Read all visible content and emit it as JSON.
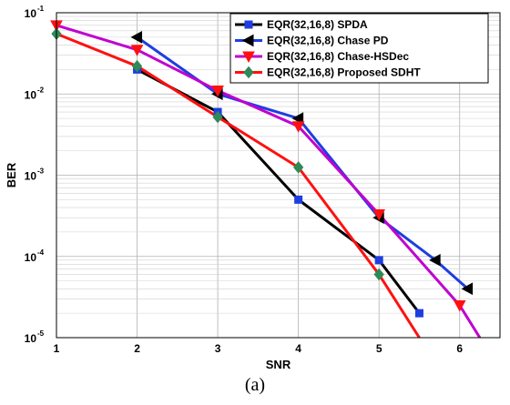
{
  "caption": "(a)",
  "chart_data": {
    "type": "line",
    "title": "",
    "xlabel": "SNR",
    "ylabel": "BER",
    "xlim": [
      1,
      6.5
    ],
    "ylim": [
      1e-05,
      0.1
    ],
    "yscale": "log",
    "x_ticks": [
      1,
      2,
      3,
      4,
      5,
      6
    ],
    "y_ticks": [
      {
        "value": 1e-05,
        "base": "10",
        "exp": "-5"
      },
      {
        "value": 0.0001,
        "base": "10",
        "exp": "-4"
      },
      {
        "value": 0.001,
        "base": "10",
        "exp": "-3"
      },
      {
        "value": 0.01,
        "base": "10",
        "exp": "-2"
      },
      {
        "value": 0.1,
        "base": "10",
        "exp": "-1"
      }
    ],
    "grid": true,
    "legend_position": "top-right",
    "series": [
      {
        "name": "EQR(32,16,8) SPDA",
        "color": "#000000",
        "marker": "square",
        "marker_color": "#1f3ee0",
        "x": [
          2,
          3,
          4,
          5,
          5.5
        ],
        "y": [
          0.02,
          0.006,
          0.0005,
          9e-05,
          2e-05
        ]
      },
      {
        "name": "EQR(32,16,8) Chase PD",
        "color": "#1f3ee0",
        "marker": "triangle-left",
        "marker_color": "#000000",
        "x": [
          2,
          3,
          4,
          5,
          5.7,
          6.1
        ],
        "y": [
          0.05,
          0.01,
          0.005,
          0.0003,
          9e-05,
          4e-05
        ]
      },
      {
        "name": "EQR(32,16,8) Chase-HSDec",
        "color": "#c000d0",
        "marker": "triangle-down",
        "marker_color": "#ff1010",
        "x": [
          1,
          2,
          3,
          4,
          5,
          6,
          6.25
        ],
        "y": [
          0.07,
          0.035,
          0.011,
          0.004,
          0.00033,
          2.5e-05,
          1e-05
        ]
      },
      {
        "name": "EQR(32,16,8) Proposed SDHT",
        "color": "#ff1010",
        "marker": "diamond",
        "marker_color": "#2e8b57",
        "x": [
          1,
          2,
          3,
          4,
          5,
          5.5
        ],
        "y": [
          0.055,
          0.022,
          0.0052,
          0.00125,
          6e-05,
          1e-05
        ]
      }
    ]
  }
}
